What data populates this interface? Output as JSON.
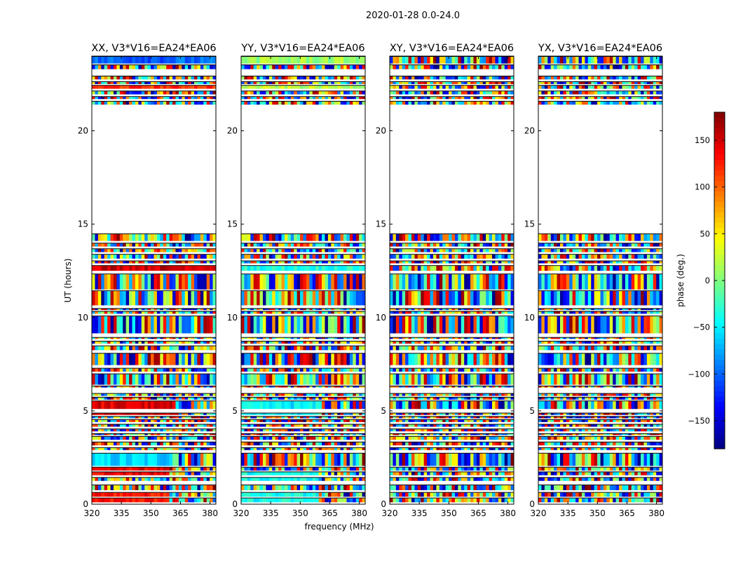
{
  "chart_data": {
    "type": "heatmap",
    "suptitle": "2020-01-28 0.0-24.0",
    "panels": [
      {
        "title": "XX, V3*V16=EA24*EA06",
        "pol": "XX"
      },
      {
        "title": "YY, V3*V16=EA24*EA06",
        "pol": "YY"
      },
      {
        "title": "XY, V3*V16=EA24*EA06",
        "pol": "XY"
      },
      {
        "title": "YX, V3*V16=EA24*EA06",
        "pol": "YX"
      }
    ],
    "xlabel": "frequency (MHz)",
    "ylabel": "UT (hours)",
    "xlim": [
      320,
      383
    ],
    "ylim": [
      0,
      24
    ],
    "xticks": [
      320,
      335,
      350,
      365,
      380
    ],
    "yticks": [
      0,
      5,
      10,
      15,
      20
    ],
    "colorbar": {
      "label": "phase (deg.)",
      "range": [
        -180,
        180
      ],
      "ticks": [
        150,
        100,
        50,
        0,
        -50,
        -100,
        -150
      ],
      "tick_labels": [
        "150",
        "100",
        "50",
        "0",
        "−50",
        "−100",
        "−150"
      ],
      "colormap": "jet"
    },
    "data_rows_ut": [
      [
        0.1,
        0.35
      ],
      [
        0.4,
        0.65
      ],
      [
        0.75,
        1.05
      ],
      [
        1.25,
        1.45
      ],
      [
        1.55,
        1.75
      ],
      [
        1.8,
        2.0
      ],
      [
        2.05,
        2.75
      ],
      [
        2.9,
        3.05
      ],
      [
        3.15,
        3.35
      ],
      [
        3.45,
        3.65
      ],
      [
        3.7,
        3.8
      ],
      [
        3.9,
        4.05
      ],
      [
        4.15,
        4.3
      ],
      [
        4.4,
        4.55
      ],
      [
        4.6,
        4.72
      ],
      [
        4.78,
        4.9
      ],
      [
        5.1,
        5.55
      ],
      [
        5.6,
        5.75
      ],
      [
        5.8,
        5.95
      ],
      [
        6.25,
        6.35
      ],
      [
        6.4,
        7.0
      ],
      [
        7.1,
        7.3
      ],
      [
        7.45,
        8.1
      ],
      [
        8.25,
        8.5
      ],
      [
        8.6,
        8.75
      ],
      [
        8.85,
        8.95
      ],
      [
        9.15,
        10.1
      ],
      [
        10.2,
        10.35
      ],
      [
        10.4,
        10.5
      ],
      [
        10.65,
        11.45
      ],
      [
        11.5,
        12.35
      ],
      [
        12.5,
        12.8
      ],
      [
        12.9,
        13.05
      ],
      [
        13.15,
        13.4
      ],
      [
        13.5,
        13.7
      ],
      [
        13.8,
        14.0
      ],
      [
        14.1,
        14.5
      ],
      [
        21.4,
        21.6
      ],
      [
        21.7,
        21.85
      ],
      [
        21.95,
        22.15
      ],
      [
        22.25,
        22.45
      ],
      [
        22.5,
        22.65
      ],
      [
        22.75,
        22.95
      ],
      [
        23.3,
        23.55
      ],
      [
        23.6,
        24.0
      ]
    ],
    "bright_bands": {
      "XX": [
        {
          "ut": [
            0.1,
            0.65
          ],
          "freq": [
            320,
            360
          ],
          "phase_deg": 130
        },
        {
          "ut": [
            1.55,
            2.0
          ],
          "freq": [
            320,
            360
          ],
          "phase_deg": 140
        },
        {
          "ut": [
            2.05,
            2.75
          ],
          "freq": [
            320,
            360
          ],
          "phase_deg": -60
        },
        {
          "ut": [
            4.78,
            5.55
          ],
          "freq": [
            320,
            361
          ],
          "phase_deg": 145
        },
        {
          "ut": [
            12.5,
            12.8
          ],
          "freq": [
            320,
            383
          ],
          "phase_deg": 155
        },
        {
          "ut": [
            22.25,
            22.45
          ],
          "freq": [
            320,
            383
          ],
          "phase_deg": 120
        },
        {
          "ut": [
            23.6,
            24.0
          ],
          "freq": [
            320,
            383
          ],
          "phase_deg": -100
        }
      ],
      "YY": [
        {
          "ut": [
            0.1,
            0.65
          ],
          "freq": [
            320,
            360
          ],
          "phase_deg": -40
        },
        {
          "ut": [
            1.25,
            1.75
          ],
          "freq": [
            320,
            360
          ],
          "phase_deg": -40
        },
        {
          "ut": [
            4.78,
            5.55
          ],
          "freq": [
            320,
            360
          ],
          "phase_deg": -50
        },
        {
          "ut": [
            12.5,
            12.8
          ],
          "freq": [
            320,
            383
          ],
          "phase_deg": -35
        },
        {
          "ut": [
            22.25,
            22.45
          ],
          "freq": [
            320,
            383
          ],
          "phase_deg": 20
        },
        {
          "ut": [
            23.6,
            24.0
          ],
          "freq": [
            320,
            383
          ],
          "phase_deg": 10
        }
      ],
      "XY": [],
      "YX": []
    }
  }
}
